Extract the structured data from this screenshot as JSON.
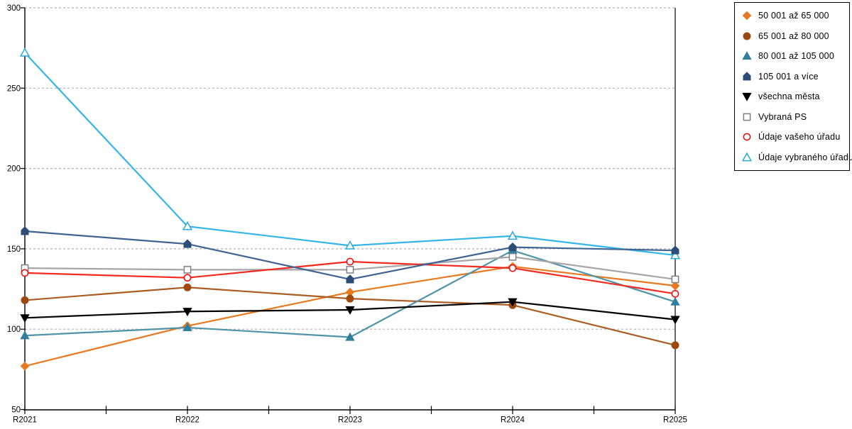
{
  "chart_data": {
    "type": "line",
    "x_categories": [
      "R2021",
      "R2022",
      "R2023",
      "R2024",
      "R2025"
    ],
    "y_ticks": [
      50,
      100,
      150,
      200,
      250,
      300
    ],
    "ylim": [
      50,
      300
    ],
    "grid": "horizontal-dashed",
    "legend_position": "right-top",
    "series": [
      {
        "name": "50 001 až 65 000",
        "marker": "diamond",
        "marker_fill": "#e8791e",
        "marker_stroke": "#e8791e",
        "line_color": "#e8791e",
        "values": [
          77,
          102,
          123,
          139,
          127
        ]
      },
      {
        "name": "65 001 až 80 000",
        "marker": "circle",
        "marker_fill": "#9e480e",
        "marker_stroke": "#9e480e",
        "line_color": "#aa5c22",
        "values": [
          118,
          126,
          119,
          115,
          90
        ]
      },
      {
        "name": "80 001 až 105 000",
        "marker": "triangle",
        "marker_fill": "#2f7f9d",
        "marker_stroke": "#2f7f9d",
        "line_color": "#4f93a8",
        "values": [
          96,
          101,
          95,
          149,
          117
        ]
      },
      {
        "name": "105 001 a více",
        "marker": "pentagon",
        "marker_fill": "#2c4d76",
        "marker_stroke": "#2c4d76",
        "line_color": "#3d6492",
        "values": [
          161,
          153,
          131,
          151,
          149
        ]
      },
      {
        "name": "všechna města",
        "marker": "triangle-down",
        "marker_fill": "#000000",
        "marker_stroke": "#000000",
        "line_color": "#000000",
        "values": [
          107,
          111,
          112,
          117,
          106
        ]
      },
      {
        "name": "Vybraná PS",
        "marker": "square-open",
        "marker_fill": "#ffffff",
        "marker_stroke": "#7f7f7f",
        "line_color": "#a6a6a6",
        "values": [
          138,
          137,
          137,
          145,
          131
        ]
      },
      {
        "name": "Údaje vašeho úřadu",
        "marker": "circle-open",
        "marker_fill": "#ffffff",
        "marker_stroke": "#ff0000",
        "line_color": "#f42a20",
        "values": [
          135,
          132,
          142,
          138,
          122
        ]
      },
      {
        "name": "Údaje vybraného úřadu",
        "marker": "triangle-open",
        "marker_fill": "#ffffff",
        "marker_stroke": "#29a8dc",
        "line_color": "#33b5e8",
        "values": [
          272,
          164,
          152,
          158,
          146
        ]
      }
    ]
  },
  "colors": {
    "background": "#ffffff",
    "grid": "#b2b2b2",
    "axis": "#000000",
    "tick_text": "#000000",
    "legend_border": "#000000"
  }
}
